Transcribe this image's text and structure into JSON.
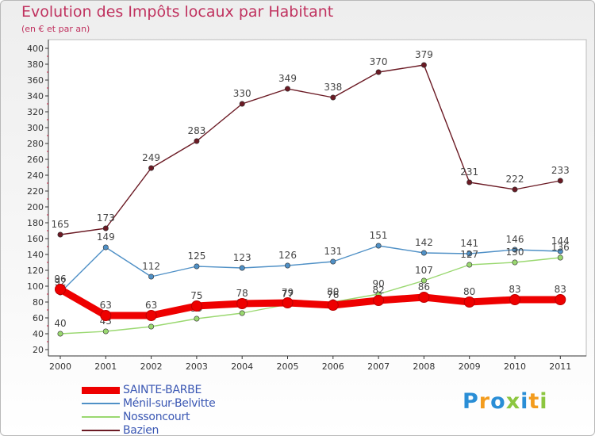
{
  "header": {
    "title": "Evolution des Impôts locaux par Habitant",
    "subtitle": "(en € et par an)"
  },
  "logo": {
    "text": "Proxiti",
    "colors": [
      "#2a8ed6",
      "#f39c1e",
      "#8cc63f"
    ]
  },
  "chart_data": {
    "type": "line",
    "title": "Evolution des Impôts locaux par Habitant",
    "subtitle": "(en € et par an)",
    "x": [
      "2000",
      "2001",
      "2002",
      "2003",
      "2004",
      "2005",
      "2006",
      "2007",
      "2008",
      "2009",
      "2010",
      "2011"
    ],
    "ylim": [
      20,
      400
    ],
    "yticks": [
      20,
      40,
      60,
      80,
      100,
      120,
      140,
      160,
      180,
      200,
      220,
      240,
      260,
      280,
      300,
      320,
      340,
      360,
      380,
      400
    ],
    "grid": false,
    "legend_position": "bottom-left",
    "series": [
      {
        "name": "SAINTE-BARBE",
        "color": "#ee0000",
        "emphasis": true,
        "values": [
          96,
          63,
          63,
          75,
          78,
          79,
          76,
          82,
          86,
          80,
          83,
          83
        ]
      },
      {
        "name": "Ménil-sur-Belvitte",
        "color": "#4f90c6",
        "emphasis": false,
        "values": [
          92,
          149,
          112,
          125,
          123,
          126,
          131,
          151,
          142,
          141,
          146,
          144
        ]
      },
      {
        "name": "Nossoncourt",
        "color": "#9ad870",
        "emphasis": false,
        "values": [
          40,
          43,
          49,
          59,
          66,
          77,
          80,
          90,
          107,
          127,
          130,
          136
        ]
      },
      {
        "name": "Bazien",
        "color": "#6b1a24",
        "emphasis": false,
        "values": [
          165,
          173,
          249,
          283,
          330,
          349,
          338,
          370,
          379,
          231,
          222,
          233
        ]
      }
    ]
  }
}
